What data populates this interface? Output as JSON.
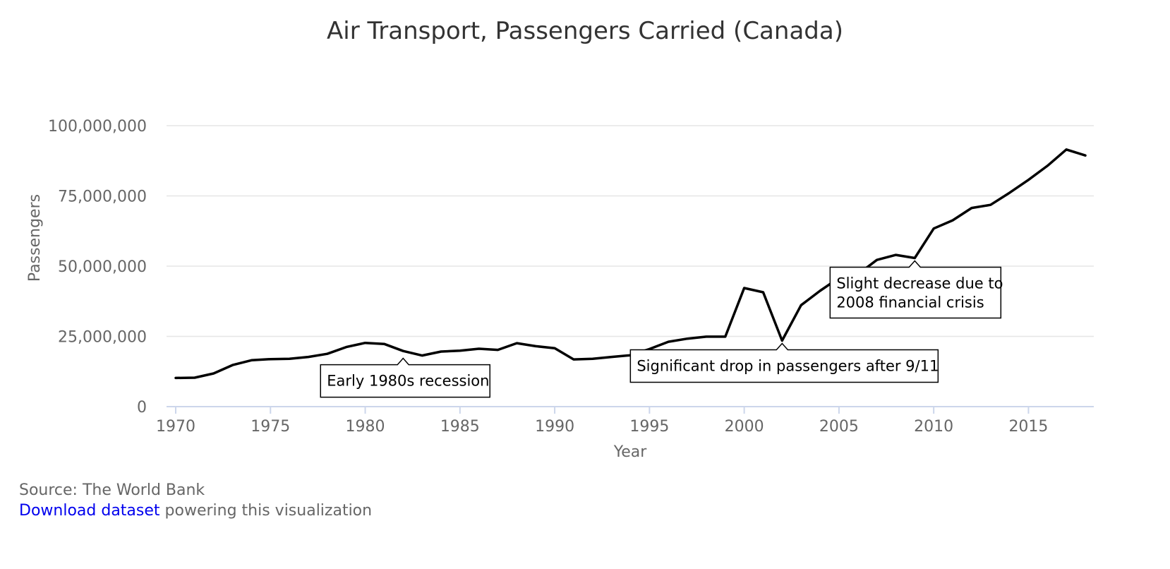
{
  "chart_data": {
    "type": "line",
    "title": "Air Transport, Passengers Carried (Canada)",
    "xlabel": "Year",
    "ylabel": "Passengers",
    "xlim": [
      1970,
      2018
    ],
    "ylim": [
      0,
      100000000
    ],
    "x_ticks": [
      1970,
      1975,
      1980,
      1985,
      1990,
      1995,
      2000,
      2005,
      2010,
      2015
    ],
    "y_ticks": [
      0,
      25000000,
      50000000,
      75000000,
      100000000
    ],
    "y_tick_labels": [
      "0",
      "25,000,000",
      "50,000,000",
      "75,000,000",
      "100,000,000"
    ],
    "grid": true,
    "line_color": "#000000",
    "grid_color": "#e6e6e6",
    "axis_color": "#ccd6eb",
    "series": [
      {
        "x": [
          1970,
          1971,
          1972,
          1973,
          1974,
          1975,
          1976,
          1977,
          1978,
          1979,
          1980,
          1981,
          1982,
          1983,
          1984,
          1985,
          1986,
          1987,
          1988,
          1989,
          1990,
          1991,
          1992,
          1993,
          1994,
          1995,
          1996,
          1997,
          1998,
          1999,
          2000,
          2001,
          2002,
          2003,
          2004,
          2005,
          2006,
          2007,
          2008,
          2009,
          2010,
          2011,
          2012,
          2013,
          2014,
          2015,
          2016,
          2017,
          2018
        ],
        "values": [
          10200000,
          10300000,
          11800000,
          14800000,
          16500000,
          16900000,
          17000000,
          17700000,
          18800000,
          21200000,
          22700000,
          22300000,
          19800000,
          18200000,
          19600000,
          19900000,
          20600000,
          20200000,
          22600000,
          21500000,
          20800000,
          16800000,
          17000000,
          17700000,
          18300000,
          20500000,
          23100000,
          24200000,
          24900000,
          24900000,
          42200000,
          40700000,
          23500000,
          36100000,
          41200000,
          45800000,
          47100000,
          52200000,
          54000000,
          52900000,
          63400000,
          66300000,
          70700000,
          71800000,
          76100000,
          80700000,
          85700000,
          91500000,
          89400000
        ]
      }
    ],
    "annotations": [
      {
        "text": [
          "Early 1980s recession"
        ],
        "x": 1982,
        "y": 18200000
      },
      {
        "text": [
          "Significant drop in passengers after 9/11"
        ],
        "x": 2002,
        "y": 23500000
      },
      {
        "text": [
          "Slight decrease due to",
          "2008 financial crisis"
        ],
        "x": 2009,
        "y": 52900000
      }
    ]
  },
  "footer": {
    "source": "Source: The World Bank",
    "link_text": "Download dataset",
    "rest": " powering this visualization"
  }
}
